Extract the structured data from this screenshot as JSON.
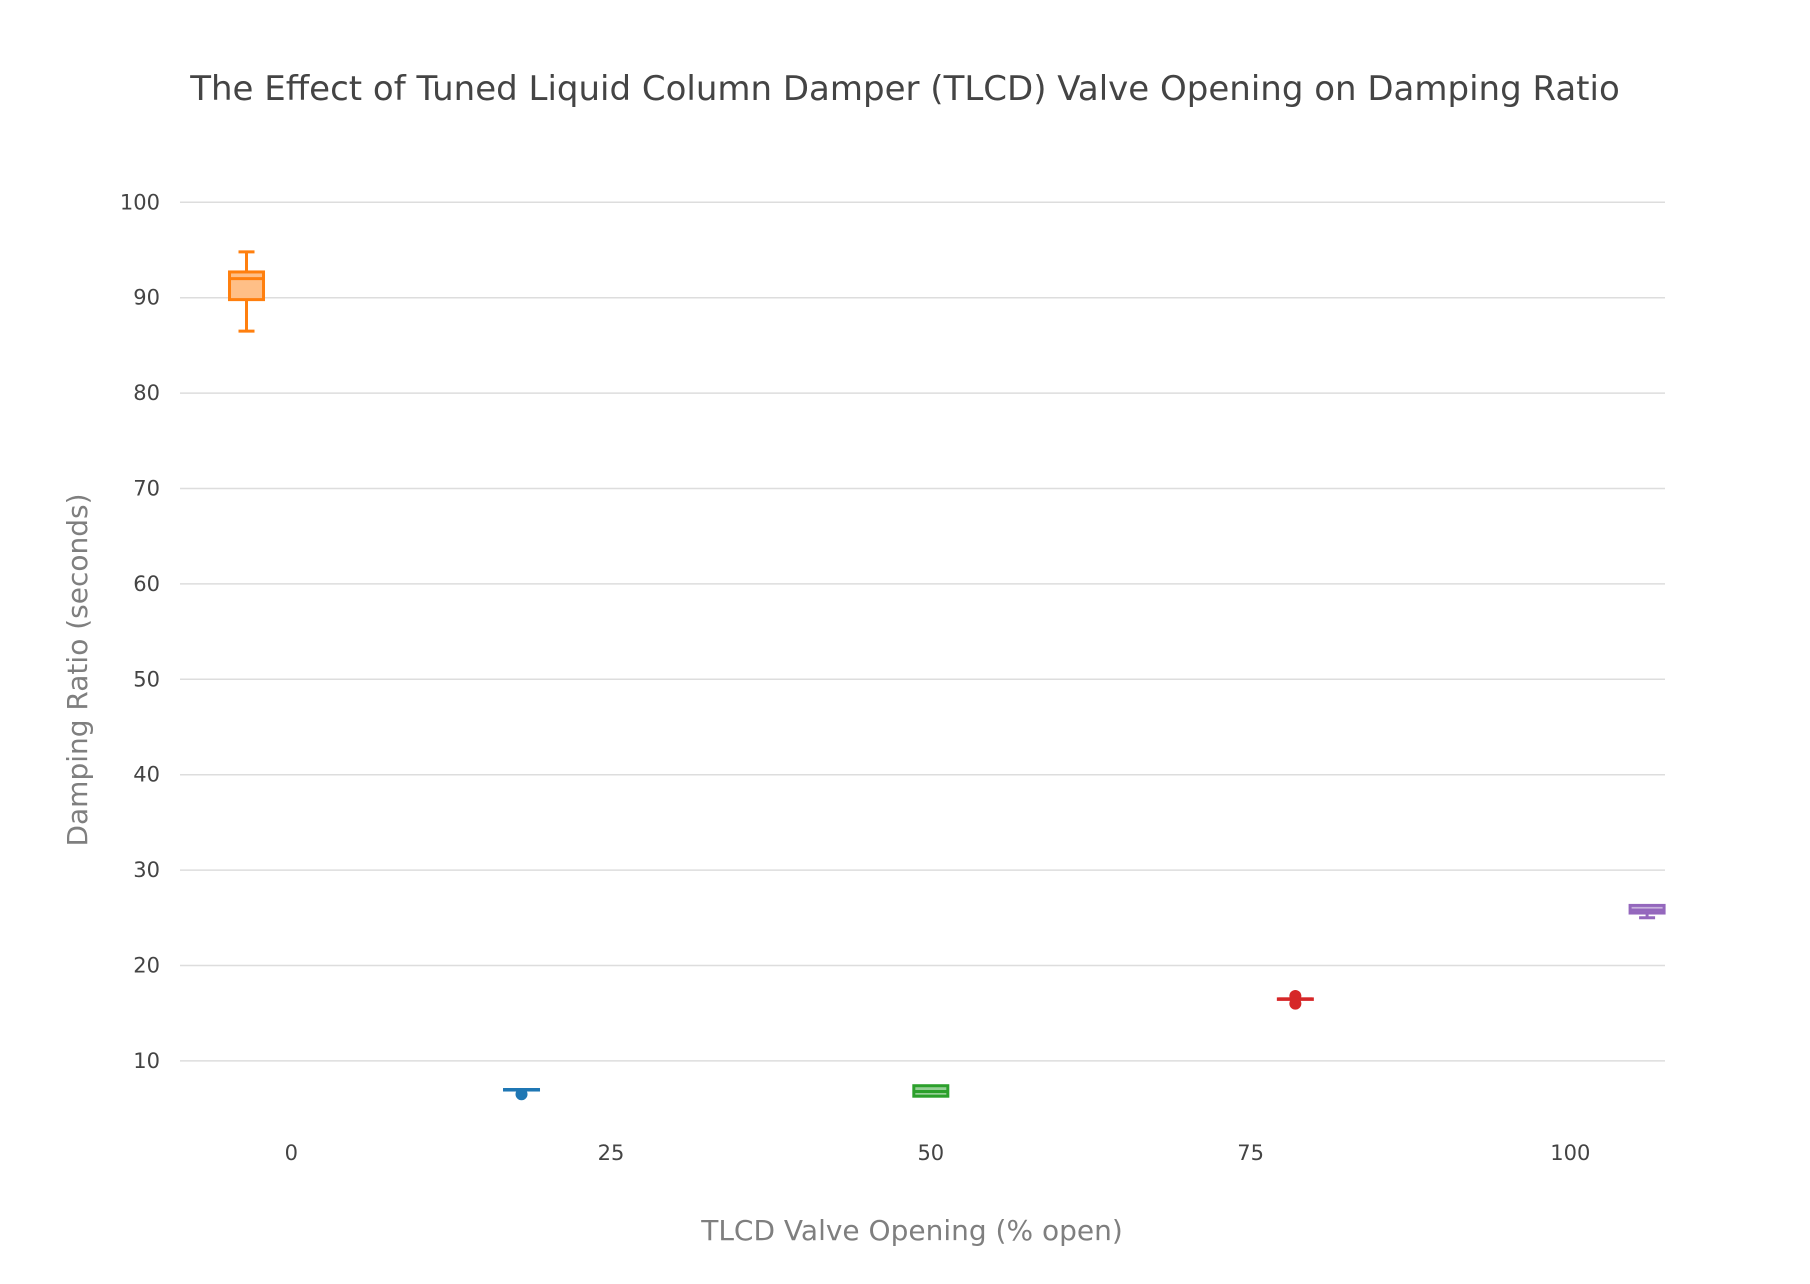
{
  "chart_data": {
    "type": "box",
    "title": "The Effect of Tuned Liquid Column Damper (TLCD) Valve Opening on Damping Ratio",
    "xlabel": "TLCD Valve Opening (% open)",
    "ylabel": "Damping Ratio (seconds)",
    "x_ticks": [
      "0",
      "25",
      "50",
      "75",
      "100"
    ],
    "y_ticks": [
      "10",
      "20",
      "30",
      "40",
      "50",
      "60",
      "70",
      "80",
      "90",
      "100"
    ],
    "xlim": [
      -8.7,
      107.4
    ],
    "ylim": [
      1.5,
      101.5
    ],
    "grid": true,
    "legend": "none",
    "series": [
      {
        "x": -3.5,
        "color": "#ff7f0e",
        "fill": "#ffbf87",
        "min": 86.5,
        "q1": 89.8,
        "median": 92.0,
        "q3": 92.7,
        "max": 94.8,
        "points": []
      },
      {
        "x": 18.0,
        "color": "#1f77b4",
        "fill": "#8fbbd9",
        "min": 7.0,
        "q1": 7.0,
        "median": 7.0,
        "q3": 7.0,
        "max": 7.0,
        "points": [
          6.5
        ]
      },
      {
        "x": 50.0,
        "color": "#2ca02c",
        "fill": "#95cf95",
        "min": 6.3,
        "q1": 6.3,
        "median": 6.8,
        "q3": 7.4,
        "max": 7.4,
        "points": []
      },
      {
        "x": 78.5,
        "color": "#d62728",
        "fill": "#ea9393",
        "min": 16.5,
        "q1": 16.5,
        "median": 16.5,
        "q3": 16.5,
        "max": 16.5,
        "points": [
          16.8,
          16.0
        ]
      },
      {
        "x": 106.0,
        "color": "#9467bd",
        "fill": "#c9b3de",
        "min": 25.0,
        "q1": 25.5,
        "median": 25.8,
        "q3": 26.3,
        "max": 26.3,
        "points": []
      }
    ]
  }
}
